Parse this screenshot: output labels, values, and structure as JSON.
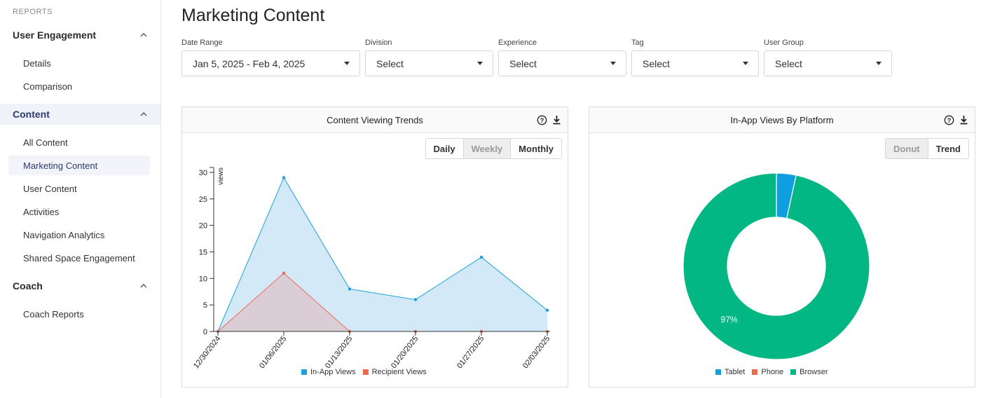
{
  "sidebar": {
    "caption": "REPORTS",
    "groups": [
      {
        "label": "User Engagement",
        "items": [
          "Details",
          "Comparison"
        ]
      },
      {
        "label": "Content",
        "items": [
          "All Content",
          "Marketing Content",
          "User Content",
          "Activities",
          "Navigation Analytics",
          "Shared Space Engagement"
        ]
      },
      {
        "label": "Coach",
        "items": [
          "Coach Reports"
        ]
      }
    ]
  },
  "page": {
    "title": "Marketing Content"
  },
  "filters": {
    "date_range": {
      "label": "Date Range",
      "value": "Jan 5, 2025 - Feb 4, 2025"
    },
    "division": {
      "label": "Division",
      "value": "Select"
    },
    "experience": {
      "label": "Experience",
      "value": "Select"
    },
    "tag": {
      "label": "Tag",
      "value": "Select"
    },
    "user_group": {
      "label": "User Group",
      "value": "Select"
    }
  },
  "trends_card": {
    "title": "Content Viewing Trends",
    "toggle": [
      "Daily",
      "Weekly",
      "Monthly"
    ],
    "active_toggle": "Weekly"
  },
  "platform_card": {
    "title": "In-App Views By Platform",
    "toggle": [
      "Donut",
      "Trend"
    ],
    "active_toggle": "Donut"
  },
  "colors": {
    "in_app": "#1aa0dd",
    "in_app_fill": "#d3e9f7",
    "recipient": "#ee6a4f",
    "recipient_fill": "#dcc8d0",
    "tablet": "#0e9fe0",
    "phone": "#ee6a4f",
    "browser": "#03b784"
  },
  "chart_data": [
    {
      "type": "area",
      "title": "Content Viewing Trends",
      "xlabel": "",
      "ylabel": "views",
      "categories": [
        "12/30/2024",
        "01/06/2025",
        "01/13/2025",
        "01/20/2025",
        "01/27/2025",
        "02/03/2025"
      ],
      "ylim": [
        0,
        30
      ],
      "yticks": [
        0,
        5,
        10,
        15,
        20,
        25,
        30
      ],
      "series": [
        {
          "name": "In-App Views",
          "values": [
            0,
            29,
            8,
            6,
            14,
            4
          ]
        },
        {
          "name": "Recipient Views",
          "values": [
            0,
            11,
            0,
            0,
            0,
            0
          ]
        }
      ],
      "legend": "bottom"
    },
    {
      "type": "pie",
      "title": "In-App Views By Platform",
      "variant": "donut",
      "categories": [
        "Tablet",
        "Phone",
        "Browser"
      ],
      "values": [
        3.4,
        0,
        96.6
      ],
      "data_labels": [
        "",
        "",
        "97%"
      ],
      "legend": "bottom"
    }
  ]
}
